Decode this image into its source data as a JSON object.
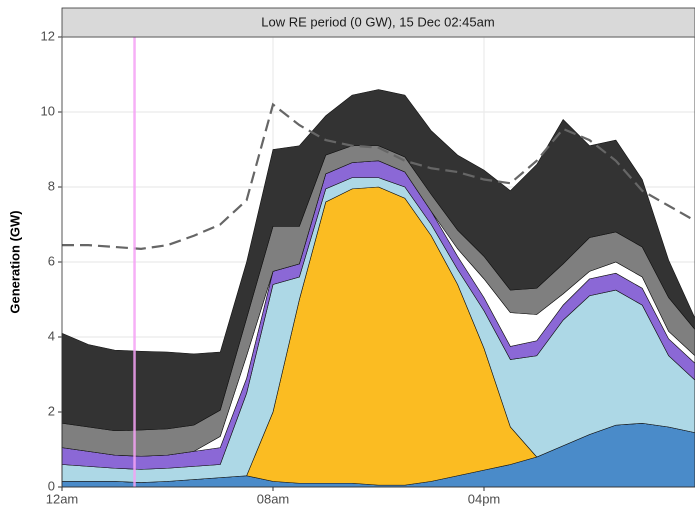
{
  "chart_data": {
    "type": "area",
    "stacked": true,
    "title": "Low RE period (0 GW), 15 Dec 02:45am",
    "y_label": "Generation (GW)",
    "x": [
      0,
      1,
      2,
      3,
      4,
      5,
      6,
      7,
      8,
      9,
      10,
      11,
      12,
      13,
      14,
      15,
      16,
      17,
      18,
      19,
      20,
      21,
      22,
      23,
      24
    ],
    "xlim": [
      0,
      24
    ],
    "xticks": [
      {
        "value": 0,
        "label": "12am"
      },
      {
        "value": 8,
        "label": "08am"
      },
      {
        "value": 16,
        "label": "04pm"
      }
    ],
    "ylim": [
      0,
      12
    ],
    "yticks": [
      0,
      2,
      4,
      6,
      8,
      10,
      12
    ],
    "grid": true,
    "highlight_x": 2.75,
    "highlight_color": "#f5a3f5",
    "series": [
      {
        "color": "#4a8bc9",
        "values": [
          0.15,
          0.15,
          0.15,
          0.12,
          0.15,
          0.2,
          0.25,
          0.3,
          0.15,
          0.1,
          0.1,
          0.1,
          0.05,
          0.05,
          0.15,
          0.3,
          0.45,
          0.6,
          0.8,
          1.1,
          1.4,
          1.65,
          1.7,
          1.6,
          1.45
        ]
      },
      {
        "color": "#fbbc22",
        "values": [
          0,
          0,
          0,
          0,
          0,
          0,
          0,
          0,
          1.85,
          4.9,
          7.5,
          7.85,
          7.95,
          7.65,
          6.55,
          5.1,
          3.25,
          1.0,
          0,
          0,
          0,
          0,
          0,
          0,
          0
        ]
      },
      {
        "color": "#add8e6",
        "values": [
          0.45,
          0.4,
          0.35,
          0.35,
          0.35,
          0.35,
          0.35,
          2.2,
          3.4,
          0.6,
          0.35,
          0.3,
          0.25,
          0.3,
          0.3,
          0.4,
          1.0,
          1.8,
          2.7,
          3.35,
          3.7,
          3.6,
          3.15,
          1.9,
          1.4
        ]
      },
      {
        "color": "#8b68d6",
        "values": [
          0.45,
          0.4,
          0.35,
          0.35,
          0.35,
          0.4,
          0.45,
          0.4,
          0.35,
          0.35,
          0.4,
          0.4,
          0.45,
          0.4,
          0.35,
          0.35,
          0.35,
          0.35,
          0.4,
          0.4,
          0.45,
          0.45,
          0.45,
          0.45,
          0.45
        ]
      },
      {
        "color": "#ffffff",
        "values": [
          0,
          0,
          0,
          0,
          0,
          0,
          0.3,
          0.6,
          0,
          0,
          0,
          0,
          0,
          0,
          0,
          0.2,
          0.5,
          0.9,
          0.7,
          0.3,
          0.2,
          0.3,
          0.3,
          0.2,
          0.2
        ]
      },
      {
        "color": "#7f7f7f",
        "values": [
          0.65,
          0.65,
          0.65,
          0.7,
          0.7,
          0.7,
          0.7,
          1.0,
          1.2,
          1.0,
          0.5,
          0.45,
          0.4,
          0.4,
          0.45,
          0.5,
          0.6,
          0.6,
          0.7,
          0.8,
          0.9,
          0.8,
          0.8,
          0.9,
          0.7
        ]
      },
      {
        "color": "#333333",
        "values": [
          2.4,
          2.2,
          2.15,
          2.1,
          2.05,
          1.9,
          1.55,
          1.5,
          2.05,
          2.15,
          1.05,
          1.35,
          1.5,
          1.65,
          1.7,
          2.0,
          2.3,
          2.65,
          3.3,
          3.85,
          2.45,
          2.45,
          1.8,
          1.0,
          0.3
        ]
      }
    ],
    "line": {
      "color": "#666666",
      "dashed": true,
      "values": [
        6.45,
        6.45,
        6.4,
        6.35,
        6.45,
        6.7,
        7.0,
        7.65,
        10.2,
        9.65,
        9.25,
        9.1,
        9.05,
        8.7,
        8.5,
        8.4,
        8.2,
        8.1,
        8.7,
        9.55,
        9.25,
        8.7,
        7.9,
        7.5,
        7.1
      ]
    }
  }
}
